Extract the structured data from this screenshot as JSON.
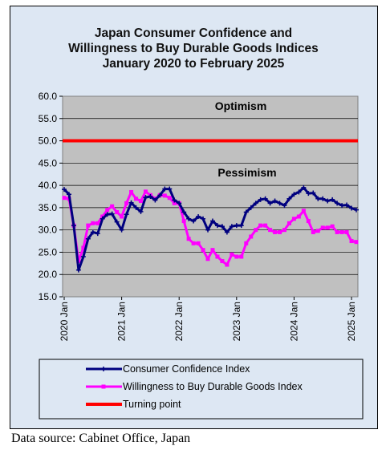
{
  "chart_data": {
    "type": "line",
    "title": [
      "Japan Consumer Confidence and",
      "Willingness to Buy Durable Goods Indices",
      "January 2020 to February 2025"
    ],
    "ylim": [
      15.0,
      60.0
    ],
    "yticks": [
      "60.0",
      "55.0",
      "50.0",
      "45.0",
      "40.0",
      "35.0",
      "30.0",
      "25.0",
      "20.0",
      "15.0"
    ],
    "xticks": [
      "2020 Jan",
      "2021 Jan",
      "2022 Jan",
      "2023 Jan",
      "2024 Jan",
      "2025 Jan"
    ],
    "annotations": [
      "Optimism",
      "Pessimism"
    ],
    "grid": "horizontal",
    "legend_position": "bottom",
    "series": [
      {
        "name": "Consumer Confidence Index",
        "color": "#00007f",
        "values": [
          39.1,
          38.0,
          31.0,
          21.0,
          24.0,
          28.0,
          29.5,
          29.2,
          32.5,
          33.5,
          33.6,
          31.8,
          30.0,
          33.5,
          36.1,
          35.0,
          34.1,
          37.3,
          37.5,
          36.7,
          37.8,
          39.2,
          39.2,
          36.7,
          36.0,
          34.0,
          32.5,
          32.0,
          33.0,
          32.5,
          30.0,
          32.0,
          31.0,
          30.8,
          29.5,
          30.8,
          31.0,
          31.0,
          34.0,
          35.0,
          36.0,
          36.8,
          37.0,
          36.0,
          36.5,
          36.0,
          35.5,
          37.0,
          38.0,
          38.5,
          39.5,
          38.2,
          38.3,
          37.0,
          37.0,
          36.5,
          36.8,
          36.0,
          35.5,
          35.6,
          34.9,
          34.5
        ]
      },
      {
        "name": "Willingness to Buy Durable Goods Index",
        "color": "#ff00ff",
        "values": [
          37.2,
          37.0,
          31.0,
          23.0,
          26.0,
          31.0,
          31.5,
          31.5,
          33.0,
          34.5,
          35.3,
          34.0,
          33.0,
          36.0,
          38.5,
          37.0,
          36.5,
          38.6,
          37.8,
          37.0,
          37.8,
          37.7,
          37.2,
          36.0,
          36.0,
          32.0,
          28.0,
          27.0,
          27.0,
          25.5,
          23.5,
          25.5,
          24.0,
          23.0,
          22.2,
          24.5,
          24.0,
          24.0,
          27.0,
          28.5,
          30.0,
          31.0,
          31.0,
          30.0,
          29.5,
          29.5,
          30.0,
          31.5,
          32.5,
          33.0,
          34.3,
          32.0,
          29.5,
          29.8,
          30.5,
          30.5,
          30.8,
          29.5,
          29.5,
          29.5,
          27.5,
          27.3
        ]
      },
      {
        "name": "Turning point",
        "color": "#ff0000",
        "values": [
          50.0,
          50.0
        ]
      }
    ]
  },
  "source_text": "Data source: Cabinet Office, Japan"
}
